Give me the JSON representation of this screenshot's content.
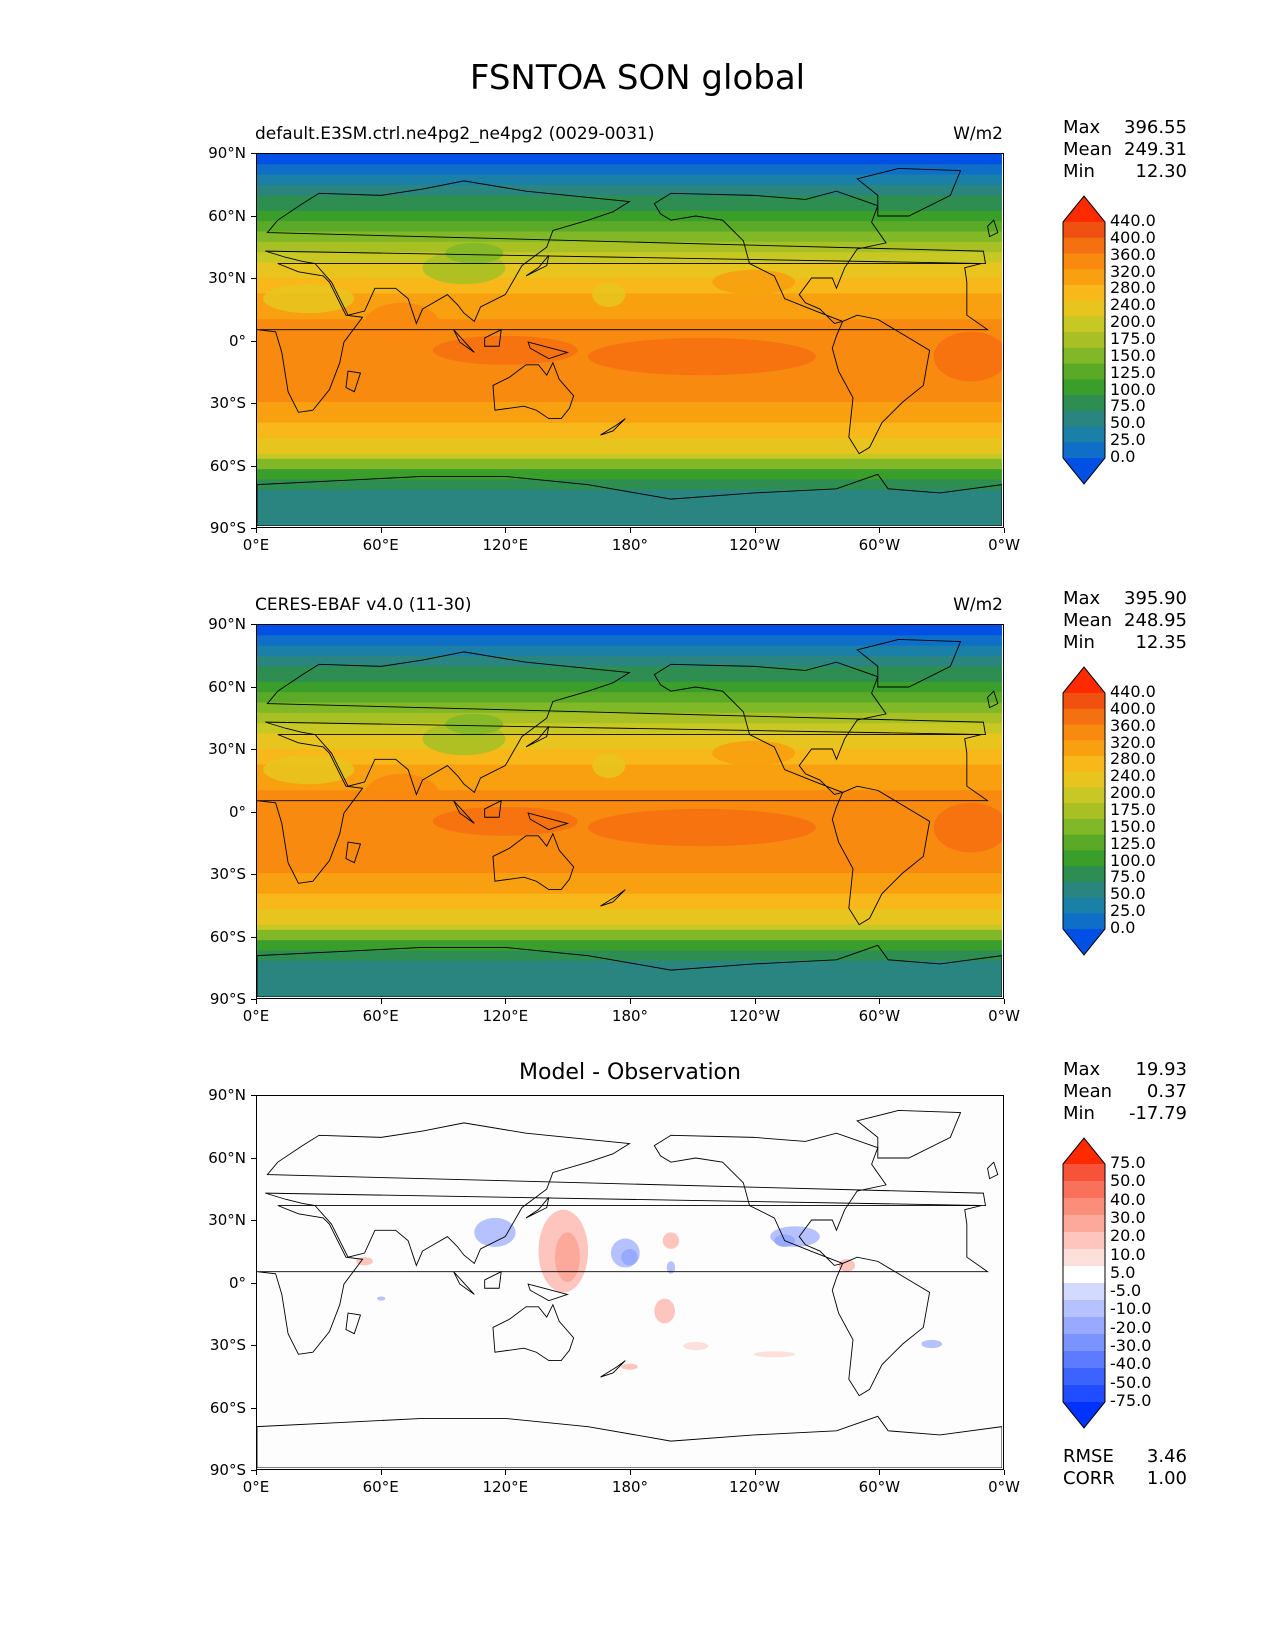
{
  "title": "FSNTOA SON global",
  "x_ticks": [
    "0°E",
    "60°E",
    "120°E",
    "180°",
    "120°W",
    "60°W",
    "0°W"
  ],
  "y_ticks": [
    "90°N",
    "60°N",
    "30°N",
    "0°",
    "30°S",
    "60°S",
    "90°S"
  ],
  "panels": [
    {
      "left_title": "default.E3SM.ctrl.ne4pg2_ne4pg2 (0029-0031)",
      "right_title": "W/m2",
      "stats": [
        [
          "Max",
          "396.55"
        ],
        [
          "Mean",
          "249.31"
        ],
        [
          "Min",
          "12.30"
        ]
      ],
      "colorbar_labels": [
        "440.0",
        "400.0",
        "360.0",
        "320.0",
        "280.0",
        "240.0",
        "200.0",
        "175.0",
        "150.0",
        "125.0",
        "100.0",
        "75.0",
        "50.0",
        "25.0",
        "0.0"
      ]
    },
    {
      "left_title": "CERES-EBAF v4.0 (11-30)",
      "right_title": "W/m2",
      "stats": [
        [
          "Max",
          "395.90"
        ],
        [
          "Mean",
          "248.95"
        ],
        [
          "Min",
          "12.35"
        ]
      ],
      "colorbar_labels": [
        "440.0",
        "400.0",
        "360.0",
        "320.0",
        "280.0",
        "240.0",
        "200.0",
        "175.0",
        "150.0",
        "125.0",
        "100.0",
        "75.0",
        "50.0",
        "25.0",
        "0.0"
      ]
    },
    {
      "center_title": "Model - Observation",
      "stats": [
        [
          "Max",
          "19.93"
        ],
        [
          "Mean",
          "0.37"
        ],
        [
          "Min",
          "-17.79"
        ]
      ],
      "colorbar_labels": [
        "75.0",
        "50.0",
        "40.0",
        "30.0",
        "20.0",
        "10.0",
        "5.0",
        "-5.0",
        "-10.0",
        "-20.0",
        "-30.0",
        "-40.0",
        "-50.0",
        "-75.0"
      ],
      "extra_stats": [
        [
          "RMSE",
          "3.46"
        ],
        [
          "CORR",
          "1.00"
        ]
      ]
    }
  ],
  "colors": {
    "field_palette": [
      "#0050e6",
      "#0f6fc8",
      "#1a80a8",
      "#2a8580",
      "#2e8d50",
      "#3a9e2a",
      "#5aaa28",
      "#80b828",
      "#a8c024",
      "#c8c824",
      "#e8c41e",
      "#f8b81a",
      "#f8a010",
      "#f88a10",
      "#f57010",
      "#f05010",
      "#ff2a00"
    ],
    "diff_palette": [
      "#0033ff",
      "#1f4dff",
      "#3d63ff",
      "#5c7bff",
      "#7a93ff",
      "#98aaff",
      "#b6c2ff",
      "#d4daff",
      "#ffffff",
      "#fde0dc",
      "#fdc5bd",
      "#fca99c",
      "#fb8d7b",
      "#f9705b",
      "#f7533b",
      "#ff2a00"
    ]
  }
}
